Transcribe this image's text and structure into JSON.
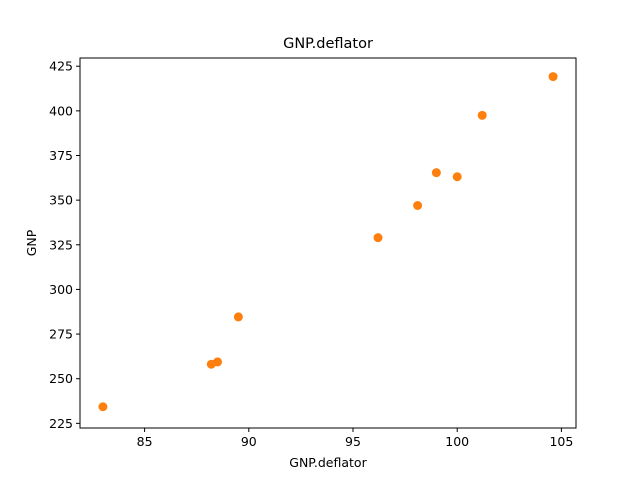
{
  "chart_data": {
    "type": "scatter",
    "title": "GNP.deflator",
    "xlabel": "GNP.deflator",
    "ylabel": "GNP",
    "xlim": [
      81.9,
      105.7
    ],
    "ylim": [
      222.4,
      429.6
    ],
    "xticks": [
      85,
      90,
      95,
      100,
      105
    ],
    "yticks": [
      225,
      250,
      275,
      300,
      325,
      350,
      375,
      400,
      425
    ],
    "grid": false,
    "marker_color": "#ff7f0e",
    "series": [
      {
        "x": [
          83.0,
          88.5,
          88.2,
          89.5,
          96.2,
          98.1,
          99.0,
          100.0,
          101.2,
          104.6
        ],
        "y": [
          234.3,
          259.4,
          258.1,
          284.6,
          329.0,
          347.0,
          365.4,
          363.1,
          397.5,
          419.2
        ]
      }
    ]
  }
}
